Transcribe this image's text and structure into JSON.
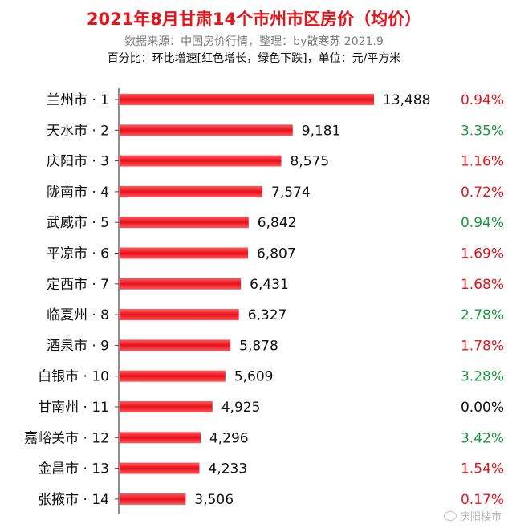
{
  "chart_data": {
    "type": "bar",
    "orientation": "horizontal",
    "title": "2021年8月甘肃14个市州市区房价（均价）",
    "subtitle": "数据来源：中国房价行情，整理：by散寒苏 2021.9",
    "note": "百分比：环比增速[红色增长，绿色下跌]，单位：元/平方米",
    "categories": [
      "兰州市 · 1",
      "天水市 · 2",
      "庆阳市 · 3",
      "陇南市 · 4",
      "武威市 · 5",
      "平凉市 · 6",
      "定西市 · 7",
      "临夏州 · 8",
      "酒泉市 · 9",
      "白银市 · 10",
      "甘南州 · 11",
      "嘉峪关市 · 12",
      "金昌市 · 13",
      "张掖市 · 14"
    ],
    "values": [
      13488,
      9181,
      8575,
      7574,
      6842,
      6807,
      6431,
      6327,
      5878,
      5609,
      4925,
      4296,
      4233,
      3506
    ],
    "value_labels": [
      "13,488",
      "9,181",
      "8,575",
      "7,574",
      "6,842",
      "6,807",
      "6,431",
      "6,327",
      "5,878",
      "5,609",
      "4,925",
      "4,296",
      "4,233",
      "3,506"
    ],
    "change_labels": [
      "0.94%",
      "3.35%",
      "1.16%",
      "0.72%",
      "0.94%",
      "1.69%",
      "1.68%",
      "2.78%",
      "1.78%",
      "3.28%",
      "0.00%",
      "3.42%",
      "1.54%",
      "0.17%"
    ],
    "change_direction": [
      "up",
      "down",
      "up",
      "up",
      "down",
      "up",
      "up",
      "down",
      "up",
      "down",
      "flat",
      "down",
      "up",
      "up"
    ],
    "xlim": [
      0,
      13488
    ],
    "grid": false,
    "colors": {
      "bar": "#f0141e",
      "up": "#e8141a",
      "down": "#1a9a3c",
      "flat": "#111111"
    }
  },
  "watermark": "庆阳楼市"
}
